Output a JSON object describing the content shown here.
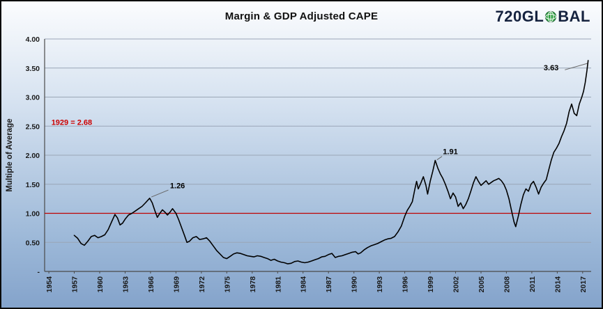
{
  "header": {
    "logo": {
      "part1": "720GL",
      "part2": "BAL",
      "text_color": "#16233f",
      "globe_color": "#2f9e41"
    }
  },
  "chart_data": {
    "type": "line",
    "title": "Margin & GDP Adjusted CAPE",
    "xlabel": "",
    "ylabel": "Multiple of Average",
    "ylim": [
      0,
      4
    ],
    "xlim": [
      1953.5,
      2018
    ],
    "grid": "horizontal",
    "legend": "none",
    "ytick_values": [
      0,
      0.5,
      1,
      1.5,
      2,
      2.5,
      3,
      3.5,
      4
    ],
    "ytick_labels": [
      "-",
      "0.50",
      "1.00",
      "1.50",
      "2.00",
      "2.50",
      "3.00",
      "3.50",
      "4.00"
    ],
    "xticks": [
      1954,
      1957,
      1960,
      1963,
      1966,
      1969,
      1972,
      1975,
      1978,
      1981,
      1984,
      1987,
      1990,
      1993,
      1996,
      1999,
      2002,
      2005,
      2008,
      2011,
      2014,
      2017
    ],
    "reference_line": {
      "value": 1.0,
      "color": "#c00000"
    },
    "style": {
      "grid_color": "#9aa6b6",
      "axis_color": "#4a4a4a",
      "text_color": "#1a1a1a",
      "leader_color": "#666666"
    },
    "series": [
      {
        "name": "Margin & GDP Adjusted CAPE",
        "color": "#000000",
        "points": [
          [
            1957.0,
            0.62
          ],
          [
            1957.4,
            0.57
          ],
          [
            1957.8,
            0.48
          ],
          [
            1958.2,
            0.45
          ],
          [
            1958.6,
            0.52
          ],
          [
            1959.0,
            0.6
          ],
          [
            1959.4,
            0.62
          ],
          [
            1959.8,
            0.58
          ],
          [
            1960.2,
            0.6
          ],
          [
            1960.6,
            0.63
          ],
          [
            1961.0,
            0.72
          ],
          [
            1961.4,
            0.85
          ],
          [
            1961.8,
            0.98
          ],
          [
            1962.1,
            0.92
          ],
          [
            1962.4,
            0.8
          ],
          [
            1962.7,
            0.83
          ],
          [
            1963.0,
            0.9
          ],
          [
            1963.4,
            0.97
          ],
          [
            1963.8,
            1.0
          ],
          [
            1964.2,
            1.04
          ],
          [
            1964.6,
            1.08
          ],
          [
            1965.0,
            1.12
          ],
          [
            1965.4,
            1.18
          ],
          [
            1965.9,
            1.26
          ],
          [
            1966.2,
            1.18
          ],
          [
            1966.5,
            1.05
          ],
          [
            1966.8,
            0.93
          ],
          [
            1967.1,
            1.0
          ],
          [
            1967.4,
            1.06
          ],
          [
            1967.7,
            1.02
          ],
          [
            1968.0,
            0.97
          ],
          [
            1968.3,
            1.02
          ],
          [
            1968.6,
            1.08
          ],
          [
            1969.0,
            1.0
          ],
          [
            1969.3,
            0.9
          ],
          [
            1969.6,
            0.78
          ],
          [
            1970.0,
            0.62
          ],
          [
            1970.3,
            0.5
          ],
          [
            1970.6,
            0.52
          ],
          [
            1971.0,
            0.58
          ],
          [
            1971.4,
            0.6
          ],
          [
            1971.8,
            0.55
          ],
          [
            1972.2,
            0.56
          ],
          [
            1972.6,
            0.58
          ],
          [
            1973.0,
            0.52
          ],
          [
            1973.4,
            0.44
          ],
          [
            1973.8,
            0.36
          ],
          [
            1974.2,
            0.3
          ],
          [
            1974.6,
            0.24
          ],
          [
            1975.0,
            0.22
          ],
          [
            1975.4,
            0.26
          ],
          [
            1975.8,
            0.3
          ],
          [
            1976.2,
            0.32
          ],
          [
            1976.6,
            0.31
          ],
          [
            1977.0,
            0.29
          ],
          [
            1977.4,
            0.27
          ],
          [
            1977.8,
            0.26
          ],
          [
            1978.2,
            0.25
          ],
          [
            1978.6,
            0.27
          ],
          [
            1979.0,
            0.26
          ],
          [
            1979.4,
            0.24
          ],
          [
            1979.8,
            0.22
          ],
          [
            1980.2,
            0.19
          ],
          [
            1980.6,
            0.21
          ],
          [
            1981.0,
            0.18
          ],
          [
            1981.4,
            0.16
          ],
          [
            1981.8,
            0.15
          ],
          [
            1982.2,
            0.13
          ],
          [
            1982.6,
            0.14
          ],
          [
            1983.0,
            0.17
          ],
          [
            1983.4,
            0.18
          ],
          [
            1983.8,
            0.16
          ],
          [
            1984.2,
            0.15
          ],
          [
            1984.6,
            0.16
          ],
          [
            1985.0,
            0.18
          ],
          [
            1985.4,
            0.2
          ],
          [
            1985.8,
            0.22
          ],
          [
            1986.2,
            0.25
          ],
          [
            1986.6,
            0.26
          ],
          [
            1987.0,
            0.29
          ],
          [
            1987.4,
            0.31
          ],
          [
            1987.8,
            0.24
          ],
          [
            1988.2,
            0.26
          ],
          [
            1988.6,
            0.27
          ],
          [
            1989.0,
            0.29
          ],
          [
            1989.4,
            0.31
          ],
          [
            1989.8,
            0.33
          ],
          [
            1990.2,
            0.34
          ],
          [
            1990.5,
            0.3
          ],
          [
            1990.8,
            0.32
          ],
          [
            1991.2,
            0.37
          ],
          [
            1991.6,
            0.41
          ],
          [
            1992.0,
            0.44
          ],
          [
            1992.4,
            0.46
          ],
          [
            1992.8,
            0.48
          ],
          [
            1993.2,
            0.51
          ],
          [
            1993.6,
            0.54
          ],
          [
            1994.0,
            0.56
          ],
          [
            1994.4,
            0.57
          ],
          [
            1994.8,
            0.6
          ],
          [
            1995.2,
            0.68
          ],
          [
            1995.6,
            0.78
          ],
          [
            1996.0,
            0.95
          ],
          [
            1996.3,
            1.05
          ],
          [
            1996.6,
            1.12
          ],
          [
            1996.9,
            1.2
          ],
          [
            1997.2,
            1.42
          ],
          [
            1997.4,
            1.55
          ],
          [
            1997.6,
            1.42
          ],
          [
            1997.9,
            1.52
          ],
          [
            1998.2,
            1.63
          ],
          [
            1998.5,
            1.48
          ],
          [
            1998.7,
            1.33
          ],
          [
            1999.0,
            1.55
          ],
          [
            1999.3,
            1.72
          ],
          [
            1999.6,
            1.91
          ],
          [
            1999.9,
            1.78
          ],
          [
            2000.2,
            1.68
          ],
          [
            2000.5,
            1.6
          ],
          [
            2000.8,
            1.5
          ],
          [
            2001.1,
            1.38
          ],
          [
            2001.4,
            1.25
          ],
          [
            2001.7,
            1.35
          ],
          [
            2002.0,
            1.28
          ],
          [
            2002.3,
            1.12
          ],
          [
            2002.6,
            1.18
          ],
          [
            2002.9,
            1.08
          ],
          [
            2003.2,
            1.15
          ],
          [
            2003.5,
            1.25
          ],
          [
            2003.8,
            1.38
          ],
          [
            2004.1,
            1.52
          ],
          [
            2004.4,
            1.63
          ],
          [
            2004.7,
            1.55
          ],
          [
            2005.0,
            1.48
          ],
          [
            2005.3,
            1.52
          ],
          [
            2005.6,
            1.56
          ],
          [
            2005.9,
            1.5
          ],
          [
            2006.2,
            1.53
          ],
          [
            2006.5,
            1.56
          ],
          [
            2006.8,
            1.58
          ],
          [
            2007.1,
            1.6
          ],
          [
            2007.4,
            1.56
          ],
          [
            2007.7,
            1.5
          ],
          [
            2008.0,
            1.4
          ],
          [
            2008.3,
            1.25
          ],
          [
            2008.6,
            1.05
          ],
          [
            2008.9,
            0.85
          ],
          [
            2009.1,
            0.77
          ],
          [
            2009.4,
            0.95
          ],
          [
            2009.7,
            1.15
          ],
          [
            2010.0,
            1.32
          ],
          [
            2010.3,
            1.42
          ],
          [
            2010.6,
            1.38
          ],
          [
            2010.9,
            1.5
          ],
          [
            2011.2,
            1.55
          ],
          [
            2011.5,
            1.45
          ],
          [
            2011.8,
            1.33
          ],
          [
            2012.1,
            1.45
          ],
          [
            2012.4,
            1.52
          ],
          [
            2012.7,
            1.58
          ],
          [
            2013.0,
            1.75
          ],
          [
            2013.3,
            1.92
          ],
          [
            2013.6,
            2.05
          ],
          [
            2013.9,
            2.12
          ],
          [
            2014.2,
            2.2
          ],
          [
            2014.5,
            2.32
          ],
          [
            2014.8,
            2.42
          ],
          [
            2015.1,
            2.55
          ],
          [
            2015.4,
            2.75
          ],
          [
            2015.7,
            2.88
          ],
          [
            2016.0,
            2.72
          ],
          [
            2016.3,
            2.68
          ],
          [
            2016.6,
            2.88
          ],
          [
            2016.9,
            3.0
          ],
          [
            2017.1,
            3.1
          ],
          [
            2017.3,
            3.25
          ],
          [
            2017.5,
            3.45
          ],
          [
            2017.65,
            3.63
          ]
        ]
      }
    ],
    "annotations": [
      {
        "text": "1929 = 2.68",
        "year": 1954.3,
        "value": 2.52,
        "color": "#cc0000",
        "leader": null
      },
      {
        "text": "1.26",
        "year": 1968.3,
        "value": 1.43,
        "color": "#000000",
        "leader": [
          [
            1968.1,
            1.4
          ],
          [
            1966.1,
            1.28
          ]
        ]
      },
      {
        "text": "1.91",
        "year": 2000.5,
        "value": 2.02,
        "color": "#000000",
        "leader": [
          [
            2000.4,
            1.98
          ],
          [
            1999.8,
            1.92
          ]
        ]
      },
      {
        "text": "3.63",
        "year": 2012.4,
        "value": 3.46,
        "color": "#000000",
        "leader": [
          [
            2014.9,
            3.47
          ],
          [
            2017.55,
            3.58
          ]
        ]
      }
    ]
  }
}
